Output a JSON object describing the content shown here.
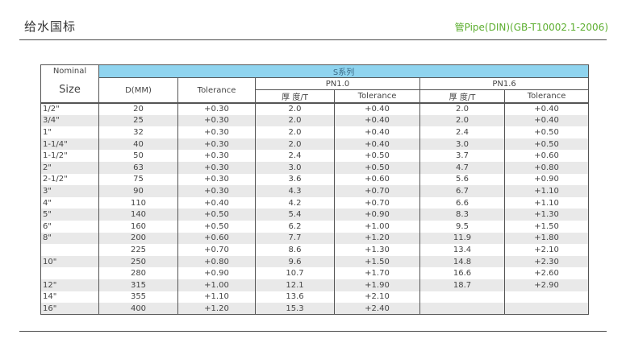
{
  "header": {
    "title": "给水国标",
    "subtitle": "管Pipe(DIN)(GB-T10002.1-2006)"
  },
  "table": {
    "nominal_label": "Nominal",
    "size_label": "Size",
    "dmm_label": "D(MM)",
    "tolerance_label": "Tolerance",
    "series_label": "S系列",
    "pn10_label": "PN1.0",
    "pn16_label": "PN1.6",
    "thickness_label": "厚 度/T",
    "rows": [
      {
        "size": "1/2\"",
        "dmm": "20",
        "tol": "+0.30",
        "pn10_t": "2.0",
        "pn10_tol": "+0.40",
        "pn16_t": "2.0",
        "pn16_tol": "+0.40"
      },
      {
        "size": "3/4\"",
        "dmm": "25",
        "tol": "+0.30",
        "pn10_t": "2.0",
        "pn10_tol": "+0.40",
        "pn16_t": "2.0",
        "pn16_tol": "+0.40"
      },
      {
        "size": "1\"",
        "dmm": "32",
        "tol": "+0.30",
        "pn10_t": "2.0",
        "pn10_tol": "+0.40",
        "pn16_t": "2.4",
        "pn16_tol": "+0.50"
      },
      {
        "size": "1-1/4\"",
        "dmm": "40",
        "tol": "+0.30",
        "pn10_t": "2.0",
        "pn10_tol": "+0.40",
        "pn16_t": "3.0",
        "pn16_tol": "+0.50"
      },
      {
        "size": "1-1/2\"",
        "dmm": "50",
        "tol": "+0.30",
        "pn10_t": "2.4",
        "pn10_tol": "+0.50",
        "pn16_t": "3.7",
        "pn16_tol": "+0.60"
      },
      {
        "size": "2\"",
        "dmm": "63",
        "tol": "+0.30",
        "pn10_t": "3.0",
        "pn10_tol": "+0.50",
        "pn16_t": "4.7",
        "pn16_tol": "+0.80"
      },
      {
        "size": "2-1/2\"",
        "dmm": "75",
        "tol": "+0.30",
        "pn10_t": "3.6",
        "pn10_tol": "+0.60",
        "pn16_t": "5.6",
        "pn16_tol": "+0.90"
      },
      {
        "size": "3\"",
        "dmm": "90",
        "tol": "+0.30",
        "pn10_t": "4.3",
        "pn10_tol": "+0.70",
        "pn16_t": "6.7",
        "pn16_tol": "+1.10"
      },
      {
        "size": "4\"",
        "dmm": "110",
        "tol": "+0.40",
        "pn10_t": "4.2",
        "pn10_tol": "+0.70",
        "pn16_t": "6.6",
        "pn16_tol": "+1.10"
      },
      {
        "size": "5\"",
        "dmm": "140",
        "tol": "+0.50",
        "pn10_t": "5.4",
        "pn10_tol": "+0.90",
        "pn16_t": "8.3",
        "pn16_tol": "+1.30"
      },
      {
        "size": "6\"",
        "dmm": "160",
        "tol": "+0.50",
        "pn10_t": "6.2",
        "pn10_tol": "+1.00",
        "pn16_t": "9.5",
        "pn16_tol": "+1.50"
      },
      {
        "size": "8\"",
        "dmm": "200",
        "tol": "+0.60",
        "pn10_t": "7.7",
        "pn10_tol": "+1.20",
        "pn16_t": "11.9",
        "pn16_tol": "+1.80"
      },
      {
        "size": "",
        "dmm": "225",
        "tol": "+0.70",
        "pn10_t": "8.6",
        "pn10_tol": "+1.30",
        "pn16_t": "13.4",
        "pn16_tol": "+2.10"
      },
      {
        "size": "10\"",
        "dmm": "250",
        "tol": "+0.80",
        "pn10_t": "9.6",
        "pn10_tol": "+1.50",
        "pn16_t": "14.8",
        "pn16_tol": "+2.30"
      },
      {
        "size": "",
        "dmm": "280",
        "tol": "+0.90",
        "pn10_t": "10.7",
        "pn10_tol": "+1.70",
        "pn16_t": "16.6",
        "pn16_tol": "+2.60"
      },
      {
        "size": "12\"",
        "dmm": "315",
        "tol": "+1.00",
        "pn10_t": "12.1",
        "pn10_tol": "+1.90",
        "pn16_t": "18.7",
        "pn16_tol": "+2.90"
      },
      {
        "size": "14\"",
        "dmm": "355",
        "tol": "+1.10",
        "pn10_t": "13.6",
        "pn10_tol": "+2.10",
        "pn16_t": "",
        "pn16_tol": ""
      },
      {
        "size": "16\"",
        "dmm": "400",
        "tol": "+1.20",
        "pn10_t": "15.3",
        "pn10_tol": "+2.40",
        "pn16_t": "",
        "pn16_tol": ""
      }
    ]
  }
}
